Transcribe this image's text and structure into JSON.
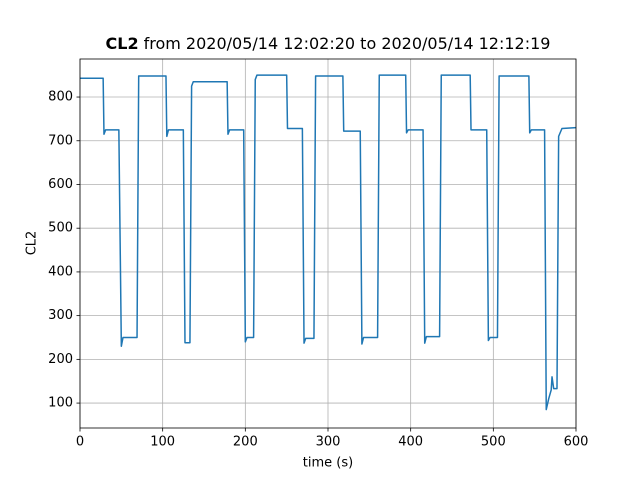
{
  "chart_data": {
    "type": "line",
    "title_variable": "CL2",
    "title": "from 2020/05/14 12:02:20 to 2020/05/14 12:12:19",
    "x_label": "time (s)",
    "y_label": "CL2",
    "xlim": [
      0,
      600
    ],
    "ylim": [
      43,
      887
    ],
    "xticks": [
      0,
      100,
      200,
      300,
      400,
      500,
      600
    ],
    "yticks": [
      100,
      200,
      300,
      400,
      500,
      600,
      700,
      800
    ],
    "grid": true,
    "series": [
      {
        "color": "#1f77b4",
        "x": [
          0,
          28,
          29,
          31,
          47,
          50,
          52,
          69,
          71,
          104,
          105,
          107,
          125,
          127,
          133,
          135,
          137,
          178,
          179,
          181,
          198,
          200,
          202,
          210,
          212,
          214,
          250,
          251,
          269,
          271,
          273,
          283,
          285,
          318,
          319,
          339,
          341,
          343,
          360,
          362,
          394,
          395,
          397,
          415,
          417,
          419,
          435,
          437,
          472,
          473,
          492,
          494,
          496,
          505,
          507,
          543,
          544,
          546,
          562,
          564,
          567,
          570,
          571,
          573,
          577,
          579,
          583,
          600
        ],
        "values": [
          843,
          843,
          715,
          725,
          725,
          230,
          250,
          250,
          848,
          848,
          710,
          725,
          725,
          238,
          238,
          825,
          835,
          835,
          715,
          725,
          725,
          240,
          250,
          250,
          840,
          850,
          850,
          728,
          728,
          237,
          248,
          248,
          848,
          848,
          722,
          722,
          235,
          250,
          250,
          850,
          850,
          718,
          725,
          725,
          237,
          252,
          252,
          850,
          850,
          725,
          725,
          243,
          250,
          250,
          848,
          848,
          718,
          725,
          725,
          85,
          110,
          130,
          160,
          133,
          133,
          710,
          728,
          730
        ]
      }
    ]
  }
}
